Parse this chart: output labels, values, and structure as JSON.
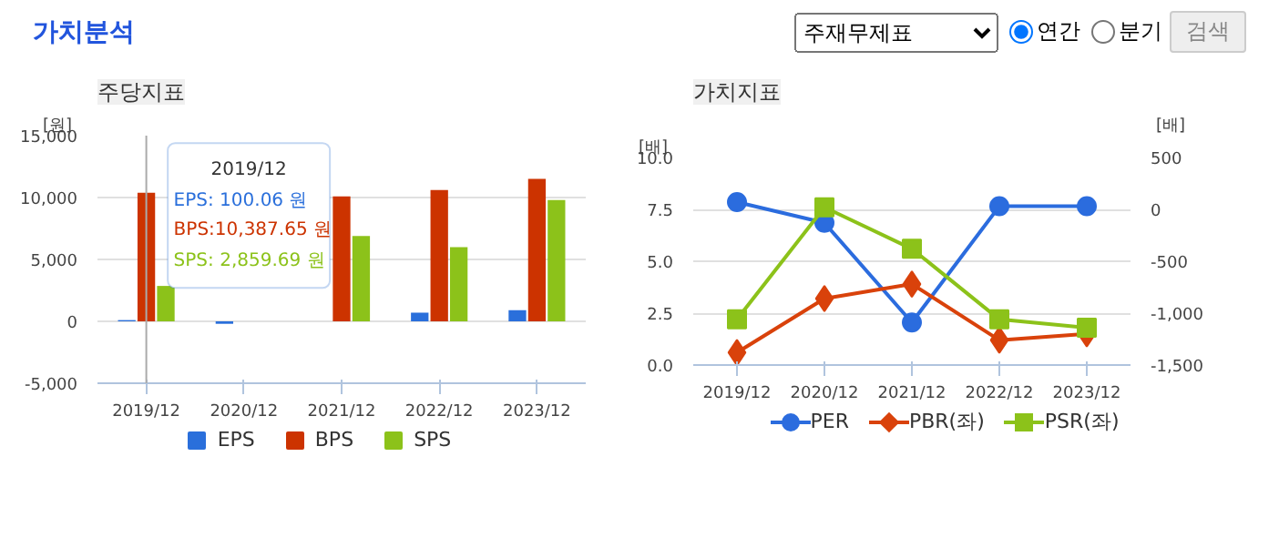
{
  "chart_data": [
    {
      "type": "other",
      "title": "가치분석",
      "annotations": [
        "주재무제표",
        "연간",
        "분기",
        "검색"
      ]
    },
    {
      "type": "bar",
      "title": "주당지표",
      "ylabel": "[원]",
      "categories": [
        "2019/12",
        "2020/12",
        "2021/12",
        "2022/12",
        "2023/12"
      ],
      "series": [
        {
          "name": "EPS",
          "color": "#2a6fdb",
          "values": [
            100.06,
            -200,
            0,
            700,
            900
          ]
        },
        {
          "name": "BPS",
          "color": "#cc3300",
          "values": [
            10387.65,
            null,
            10100,
            10600,
            11500
          ]
        },
        {
          "name": "SPS",
          "color": "#8cc21a",
          "values": [
            2859.69,
            null,
            6900,
            6000,
            9800
          ]
        }
      ],
      "ylim": [
        -5000,
        15000
      ],
      "yticks": [
        {
          "value": -5000,
          "label": "-5,000"
        },
        0,
        {
          "value": 5000,
          "label": "5,000"
        },
        {
          "value": 10000,
          "label": "10,000"
        },
        {
          "value": 15000,
          "label": "15,000"
        }
      ],
      "grid": "y",
      "legend": "bottom",
      "ref_lines": [
        {
          "axis": "x",
          "value": "2019/12",
          "color": "#aaaaaa"
        }
      ],
      "annotations": [
        "2019/12",
        "EPS:    100.06 원",
        "BPS:10,387.65 원",
        "SPS:  2,859.69 원"
      ]
    },
    {
      "type": "line",
      "title": "가치지표",
      "ylabel": "[배]",
      "y2label": "[배]",
      "categories": [
        "2019/12",
        "2020/12",
        "2021/12",
        "2022/12",
        "2023/12"
      ],
      "series": [
        {
          "name": "PER",
          "color": "#2b6cde",
          "axis": "y2",
          "marker": "circle",
          "values": [
            70,
            -130,
            -1090,
            30,
            30
          ]
        },
        {
          "name": "PBR(좌)",
          "color": "#d9420b",
          "marker": "diamond",
          "values": [
            0.6,
            3.2,
            3.9,
            1.2,
            1.5
          ]
        },
        {
          "name": "PSR(좌)",
          "color": "#8cc21a",
          "marker": "square",
          "values": [
            2.2,
            7.6,
            5.6,
            2.2,
            1.8
          ]
        }
      ],
      "ylim": [
        0,
        10
      ],
      "yticks": [
        {
          "value": 0,
          "label": "0.0"
        },
        {
          "value": 2.5,
          "label": "2.5"
        },
        {
          "value": 5,
          "label": "5.0"
        },
        {
          "value": 7.5,
          "label": "7.5"
        },
        {
          "value": 10,
          "label": "10.0"
        }
      ],
      "y2lim": [
        -1500,
        500
      ],
      "y2ticks": [
        {
          "value": -1500,
          "label": "-1,500"
        },
        {
          "value": -1000,
          "label": "-1,000"
        },
        -500,
        0,
        500
      ],
      "grid": "y",
      "legend": "bottom",
      "line_style": "solid"
    }
  ]
}
